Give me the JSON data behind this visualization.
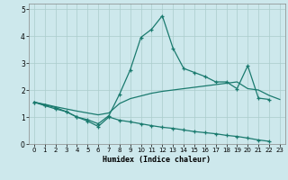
{
  "xlabel": "Humidex (Indice chaleur)",
  "background_color": "#cde8ec",
  "grid_color": "#aacccc",
  "line_color": "#1a7a6e",
  "xlim": [
    -0.5,
    23.5
  ],
  "ylim": [
    0,
    5.2
  ],
  "xticks": [
    0,
    1,
    2,
    3,
    4,
    5,
    6,
    7,
    8,
    9,
    10,
    11,
    12,
    13,
    14,
    15,
    16,
    17,
    18,
    19,
    20,
    21,
    22,
    23
  ],
  "yticks": [
    0,
    1,
    2,
    3,
    4,
    5
  ],
  "line1_x": [
    0,
    1,
    2,
    3,
    4,
    5,
    6,
    7,
    8,
    9,
    10,
    11,
    12,
    13,
    14,
    15,
    16,
    17,
    18,
    19,
    20,
    21,
    22,
    23
  ],
  "line1_y": [
    1.55,
    1.45,
    1.35,
    1.2,
    1.0,
    0.9,
    0.75,
    1.05,
    1.85,
    2.75,
    3.95,
    4.25,
    4.75,
    3.55,
    2.8,
    2.65,
    2.5,
    2.3,
    2.3,
    2.05,
    2.9,
    1.7,
    1.65,
    null
  ],
  "line2_x": [
    0,
    1,
    2,
    3,
    4,
    5,
    6,
    7,
    8,
    9,
    10,
    11,
    12,
    13,
    14,
    15,
    16,
    17,
    18,
    19,
    20,
    21,
    22,
    23
  ],
  "line2_y": [
    1.55,
    1.47,
    1.38,
    1.3,
    1.22,
    1.15,
    1.08,
    1.15,
    1.5,
    1.68,
    1.78,
    1.88,
    1.95,
    2.0,
    2.05,
    2.1,
    2.15,
    2.2,
    2.25,
    2.3,
    2.05,
    2.0,
    1.8,
    1.65
  ],
  "line3_x": [
    0,
    1,
    2,
    3,
    4,
    5,
    6,
    7,
    8,
    9,
    10,
    11,
    12,
    13,
    14,
    15,
    16,
    17,
    18,
    19,
    20,
    21,
    22,
    23
  ],
  "line3_y": [
    1.55,
    1.42,
    1.3,
    1.2,
    1.0,
    0.85,
    0.65,
    1.0,
    0.88,
    0.82,
    0.75,
    0.68,
    0.62,
    0.58,
    0.52,
    0.46,
    0.42,
    0.38,
    0.32,
    0.28,
    0.22,
    0.15,
    0.1,
    null
  ]
}
